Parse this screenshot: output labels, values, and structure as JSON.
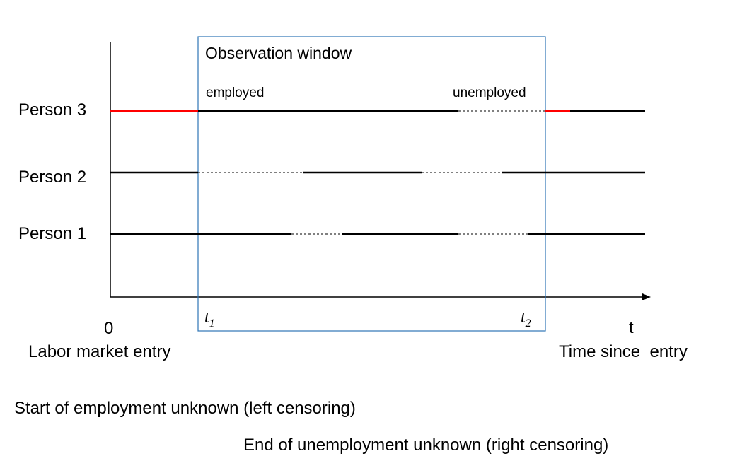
{
  "window_label": "Observation window",
  "persons": [
    {
      "label": "Person 3"
    },
    {
      "label": "Person 2"
    },
    {
      "label": "Person 1"
    }
  ],
  "state_labels": {
    "employed": "employed",
    "unemployed": "unemployed"
  },
  "axis": {
    "origin": "0",
    "origin_caption": "Labor market entry",
    "t_symbol": "t",
    "t_caption": "Time since  entry",
    "t1_main": "t",
    "t1_sub": "1",
    "t2_main": "t",
    "t2_sub": "2"
  },
  "notes": {
    "left_censoring": "Start of employment unknown (left censoring)",
    "right_censoring": "End of unemployment unknown (right censoring)"
  },
  "colors": {
    "employed_line": "#000000",
    "censored_segment": "#ff0000",
    "window_border": "#2e75b6"
  }
}
